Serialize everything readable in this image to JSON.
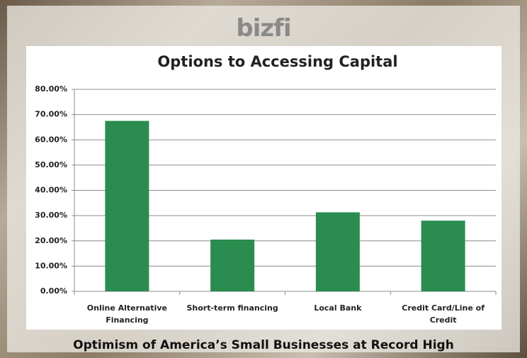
{
  "logo": "bizfi",
  "caption": "Optimism of America’s Small Businesses at Record High",
  "chart_data": {
    "type": "bar",
    "title": "Options to Accessing Capital",
    "categories": [
      "Online Alternative Financing",
      "Short-term financing",
      "Local Bank",
      "Credit Card/Line of Credit"
    ],
    "values": [
      67.5,
      20.5,
      31.3,
      28.0
    ],
    "color": "#2a8c4e",
    "ylim": [
      0,
      80
    ],
    "yticks": [
      {
        "value": 0,
        "label": "0.00%"
      },
      {
        "value": 10,
        "label": "10.00%"
      },
      {
        "value": 20,
        "label": "20.00%"
      },
      {
        "value": 30,
        "label": "30.00%"
      },
      {
        "value": 40,
        "label": "40.00%"
      },
      {
        "value": 50,
        "label": "50.00%"
      },
      {
        "value": 60,
        "label": "60.00%"
      },
      {
        "value": 70,
        "label": "70.00%"
      },
      {
        "value": 80,
        "label": "80.00%"
      }
    ],
    "grid": true
  }
}
